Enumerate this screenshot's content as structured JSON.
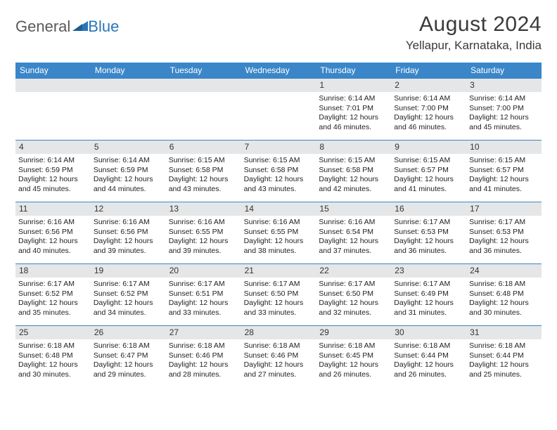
{
  "logo": {
    "text_a": "General",
    "text_b": "Blue"
  },
  "title": "August 2024",
  "location": "Yellapur, Karnataka, India",
  "colors": {
    "header_bg": "#3a86c8",
    "header_fg": "#ffffff",
    "daynum_bg": "#e5e6e7",
    "border": "#3a86c8",
    "logo_gray": "#5a5a5a",
    "logo_blue": "#2a76b8"
  },
  "day_names": [
    "Sunday",
    "Monday",
    "Tuesday",
    "Wednesday",
    "Thursday",
    "Friday",
    "Saturday"
  ],
  "grid": [
    {
      "d": "",
      "blank": true
    },
    {
      "d": "",
      "blank": true
    },
    {
      "d": "",
      "blank": true
    },
    {
      "d": "",
      "blank": true
    },
    {
      "d": "1",
      "sr": "6:14 AM",
      "ss": "7:01 PM",
      "dl": "12 hours and 46 minutes."
    },
    {
      "d": "2",
      "sr": "6:14 AM",
      "ss": "7:00 PM",
      "dl": "12 hours and 46 minutes."
    },
    {
      "d": "3",
      "sr": "6:14 AM",
      "ss": "7:00 PM",
      "dl": "12 hours and 45 minutes."
    },
    {
      "d": "4",
      "sr": "6:14 AM",
      "ss": "6:59 PM",
      "dl": "12 hours and 45 minutes."
    },
    {
      "d": "5",
      "sr": "6:14 AM",
      "ss": "6:59 PM",
      "dl": "12 hours and 44 minutes."
    },
    {
      "d": "6",
      "sr": "6:15 AM",
      "ss": "6:58 PM",
      "dl": "12 hours and 43 minutes."
    },
    {
      "d": "7",
      "sr": "6:15 AM",
      "ss": "6:58 PM",
      "dl": "12 hours and 43 minutes."
    },
    {
      "d": "8",
      "sr": "6:15 AM",
      "ss": "6:58 PM",
      "dl": "12 hours and 42 minutes."
    },
    {
      "d": "9",
      "sr": "6:15 AM",
      "ss": "6:57 PM",
      "dl": "12 hours and 41 minutes."
    },
    {
      "d": "10",
      "sr": "6:15 AM",
      "ss": "6:57 PM",
      "dl": "12 hours and 41 minutes."
    },
    {
      "d": "11",
      "sr": "6:16 AM",
      "ss": "6:56 PM",
      "dl": "12 hours and 40 minutes."
    },
    {
      "d": "12",
      "sr": "6:16 AM",
      "ss": "6:56 PM",
      "dl": "12 hours and 39 minutes."
    },
    {
      "d": "13",
      "sr": "6:16 AM",
      "ss": "6:55 PM",
      "dl": "12 hours and 39 minutes."
    },
    {
      "d": "14",
      "sr": "6:16 AM",
      "ss": "6:55 PM",
      "dl": "12 hours and 38 minutes."
    },
    {
      "d": "15",
      "sr": "6:16 AM",
      "ss": "6:54 PM",
      "dl": "12 hours and 37 minutes."
    },
    {
      "d": "16",
      "sr": "6:17 AM",
      "ss": "6:53 PM",
      "dl": "12 hours and 36 minutes."
    },
    {
      "d": "17",
      "sr": "6:17 AM",
      "ss": "6:53 PM",
      "dl": "12 hours and 36 minutes."
    },
    {
      "d": "18",
      "sr": "6:17 AM",
      "ss": "6:52 PM",
      "dl": "12 hours and 35 minutes."
    },
    {
      "d": "19",
      "sr": "6:17 AM",
      "ss": "6:52 PM",
      "dl": "12 hours and 34 minutes."
    },
    {
      "d": "20",
      "sr": "6:17 AM",
      "ss": "6:51 PM",
      "dl": "12 hours and 33 minutes."
    },
    {
      "d": "21",
      "sr": "6:17 AM",
      "ss": "6:50 PM",
      "dl": "12 hours and 33 minutes."
    },
    {
      "d": "22",
      "sr": "6:17 AM",
      "ss": "6:50 PM",
      "dl": "12 hours and 32 minutes."
    },
    {
      "d": "23",
      "sr": "6:17 AM",
      "ss": "6:49 PM",
      "dl": "12 hours and 31 minutes."
    },
    {
      "d": "24",
      "sr": "6:18 AM",
      "ss": "6:48 PM",
      "dl": "12 hours and 30 minutes."
    },
    {
      "d": "25",
      "sr": "6:18 AM",
      "ss": "6:48 PM",
      "dl": "12 hours and 30 minutes."
    },
    {
      "d": "26",
      "sr": "6:18 AM",
      "ss": "6:47 PM",
      "dl": "12 hours and 29 minutes."
    },
    {
      "d": "27",
      "sr": "6:18 AM",
      "ss": "6:46 PM",
      "dl": "12 hours and 28 minutes."
    },
    {
      "d": "28",
      "sr": "6:18 AM",
      "ss": "6:46 PM",
      "dl": "12 hours and 27 minutes."
    },
    {
      "d": "29",
      "sr": "6:18 AM",
      "ss": "6:45 PM",
      "dl": "12 hours and 26 minutes."
    },
    {
      "d": "30",
      "sr": "6:18 AM",
      "ss": "6:44 PM",
      "dl": "12 hours and 26 minutes."
    },
    {
      "d": "31",
      "sr": "6:18 AM",
      "ss": "6:44 PM",
      "dl": "12 hours and 25 minutes."
    }
  ],
  "labels": {
    "sunrise": "Sunrise: ",
    "sunset": "Sunset: ",
    "daylight": "Daylight: "
  }
}
